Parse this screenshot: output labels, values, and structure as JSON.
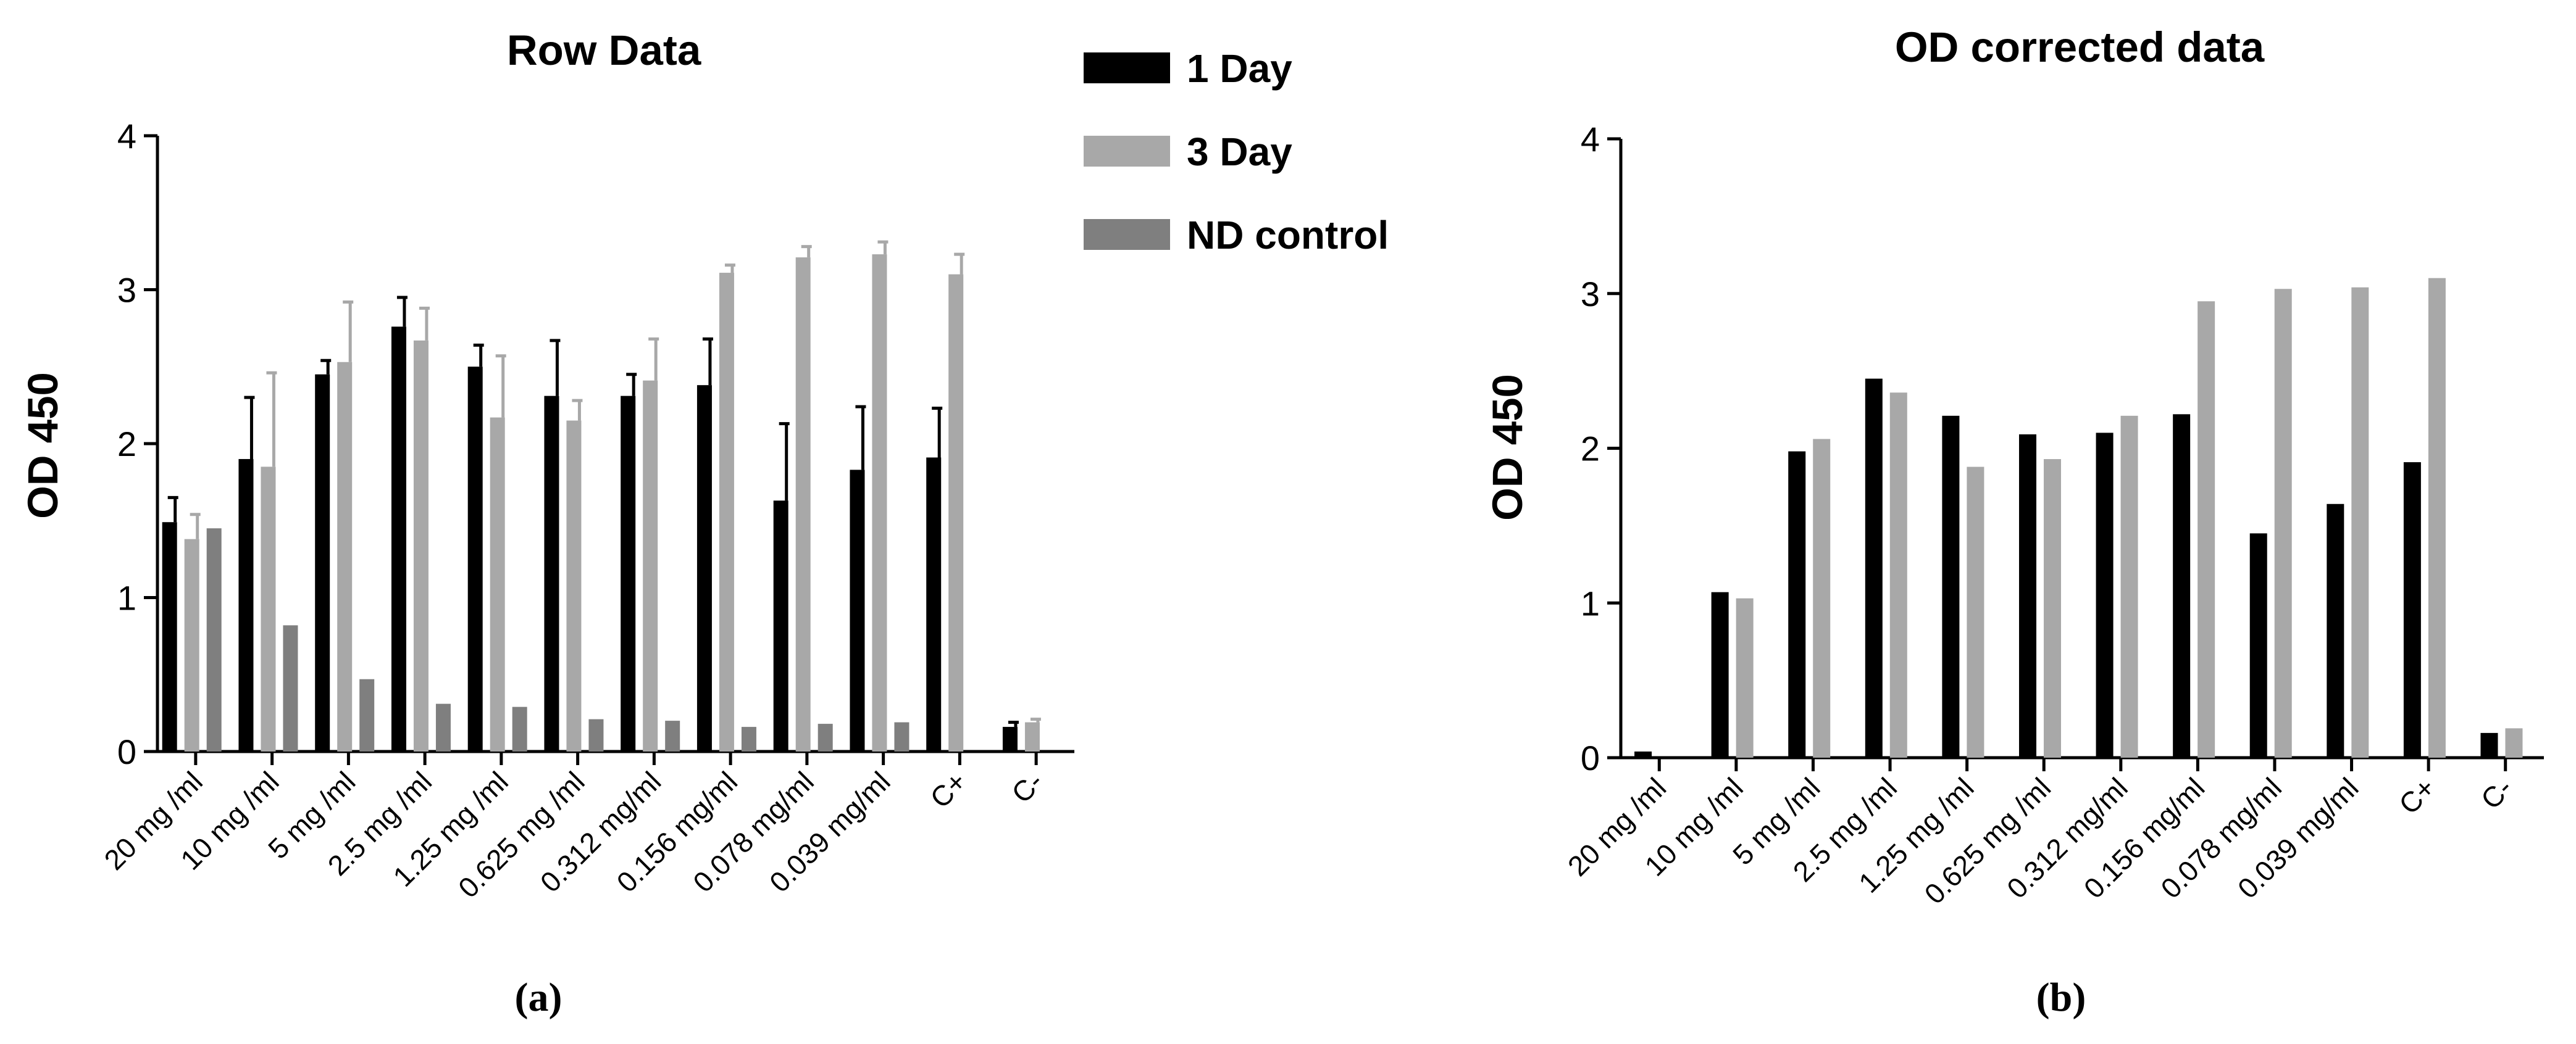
{
  "chart_data": [
    {
      "type": "bar",
      "panel_label": "(a)",
      "title": "Row Data",
      "xlabel": "",
      "ylabel": "OD 450",
      "ylim": [
        0,
        4
      ],
      "yticks": [
        "0",
        "1",
        "2",
        "3",
        "4"
      ],
      "categories": [
        "20 mg /ml",
        "10 mg /ml",
        "5 mg /ml",
        "2.5 mg /ml",
        "1.25 mg /ml",
        "0.625 mg /ml",
        "0.312 mg/ml",
        "0.156 mg/ml",
        "0.078 mg/ml",
        "0.039 mg/ml",
        "C+",
        "C-"
      ],
      "series": [
        {
          "name": "1 Day",
          "color": "#000000",
          "values": [
            1.49,
            1.9,
            2.45,
            2.76,
            2.5,
            2.31,
            2.31,
            2.38,
            1.63,
            1.83,
            1.91,
            0.16
          ],
          "errors": [
            0.16,
            0.4,
            0.09,
            0.19,
            0.14,
            0.36,
            0.14,
            0.3,
            0.5,
            0.41,
            0.32,
            0.03
          ]
        },
        {
          "name": "3 Day",
          "color": "#a8a8a8",
          "values": [
            1.38,
            1.85,
            2.53,
            2.67,
            2.17,
            2.15,
            2.41,
            3.11,
            3.21,
            3.23,
            3.1,
            0.19
          ],
          "errors": [
            0.16,
            0.61,
            0.39,
            0.21,
            0.4,
            0.13,
            0.27,
            0.05,
            0.07,
            0.08,
            0.13,
            0.02
          ]
        },
        {
          "name": "ND control",
          "color": "#7f7f7f",
          "values": [
            1.45,
            0.82,
            0.47,
            0.31,
            0.29,
            0.21,
            0.2,
            0.16,
            0.18,
            0.19,
            null,
            null
          ],
          "errors": [
            0,
            0,
            0,
            0,
            0,
            0,
            0,
            0,
            0,
            0,
            0,
            0
          ]
        }
      ],
      "legend": {
        "position": "right-outside-top",
        "entries": [
          "1 Day",
          "3 Day",
          "ND control"
        ]
      }
    },
    {
      "type": "bar",
      "panel_label": "(b)",
      "title": "OD corrected data",
      "xlabel": "",
      "ylabel": "OD 450",
      "ylim": [
        0,
        4
      ],
      "yticks": [
        "0",
        "1",
        "2",
        "3",
        "4"
      ],
      "categories": [
        "20 mg /ml",
        "10 mg /ml",
        "5 mg /ml",
        "2.5 mg /ml",
        "1.25 mg /ml",
        "0.625 mg /ml",
        "0.312 mg/ml",
        "0.156 mg/ml",
        "0.078 mg/ml",
        "0.039 mg/ml",
        "C+",
        "C-"
      ],
      "series": [
        {
          "name": "1 Day",
          "color": "#000000",
          "values": [
            0.04,
            1.07,
            1.98,
            2.45,
            2.21,
            2.09,
            2.1,
            2.22,
            1.45,
            1.64,
            1.91,
            0.16
          ]
        },
        {
          "name": "3 Day",
          "color": "#a8a8a8",
          "values": [
            0.0,
            1.03,
            2.06,
            2.36,
            1.88,
            1.93,
            2.21,
            2.95,
            3.03,
            3.04,
            3.1,
            0.19
          ]
        }
      ]
    }
  ]
}
